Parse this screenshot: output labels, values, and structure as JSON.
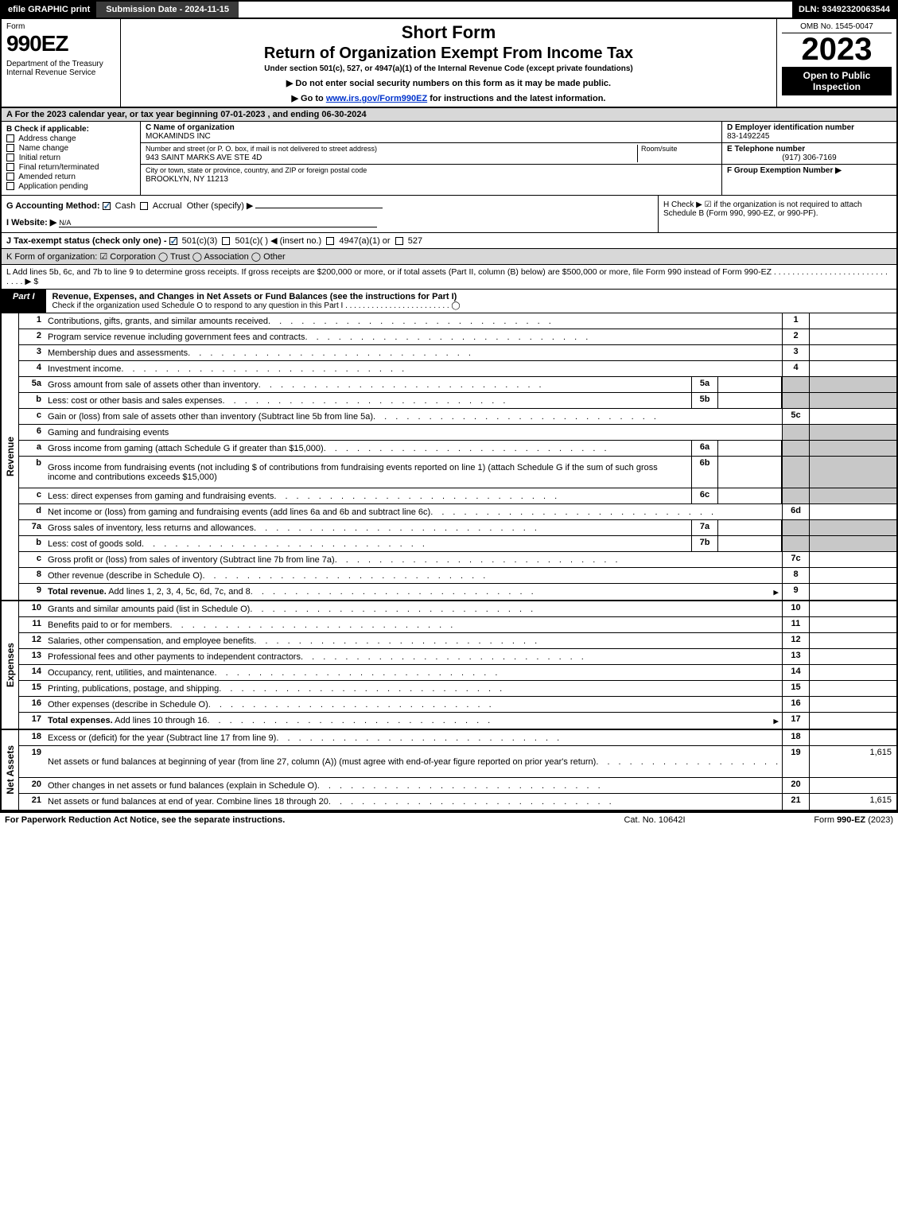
{
  "topbar": {
    "efile": "efile GRAPHIC print",
    "submission": "Submission Date - 2024-11-15",
    "dln": "DLN: 93492320063544"
  },
  "header": {
    "form_word": "Form",
    "form_number": "990EZ",
    "dept": "Department of the Treasury\nInternal Revenue Service",
    "short_form": "Short Form",
    "title": "Return of Organization Exempt From Income Tax",
    "under": "Under section 501(c), 527, or 4947(a)(1) of the Internal Revenue Code (except private foundations)",
    "no_ssn": "▶ Do not enter social security numbers on this form as it may be made public.",
    "goto_pre": "▶ Go to ",
    "goto_link": "www.irs.gov/Form990EZ",
    "goto_post": " for instructions and the latest information.",
    "omb": "OMB No. 1545-0047",
    "year": "2023",
    "open": "Open to Public Inspection"
  },
  "secA": "A  For the 2023 calendar year, or tax year beginning 07-01-2023 , and ending 06-30-2024",
  "secB": {
    "label": "B  Check if applicable:",
    "items": [
      "Address change",
      "Name change",
      "Initial return",
      "Final return/terminated",
      "Amended return",
      "Application pending"
    ]
  },
  "secC": {
    "c_label": "C Name of organization",
    "c_val": "MOKAMINDS INC",
    "addr_label": "Number and street (or P. O. box, if mail is not delivered to street address)",
    "addr_val": "943 SAINT MARKS AVE STE 4D",
    "room_label": "Room/suite",
    "city_label": "City or town, state or province, country, and ZIP or foreign postal code",
    "city_val": "BROOKLYN, NY  11213"
  },
  "secD": {
    "d_label": "D Employer identification number",
    "d_val": "83-1492245",
    "e_label": "E Telephone number",
    "e_val": "(917) 306-7169",
    "f_label": "F Group Exemption Number   ▶"
  },
  "secG": {
    "g": "G Accounting Method:",
    "cash": "Cash",
    "accrual": "Accrual",
    "other": "Other (specify) ▶",
    "i": "I Website: ▶",
    "i_val": "N/A",
    "j": "J Tax-exempt status (check only one) -",
    "j1": "501(c)(3)",
    "j2": "501(c)(  ) ◀ (insert no.)",
    "j3": "4947(a)(1) or",
    "j4": "527"
  },
  "secH": "H  Check ▶   ☑  if the organization is not required to attach Schedule B (Form 990, 990-EZ, or 990-PF).",
  "secK": "K Form of organization:   ☑ Corporation   ◯ Trust   ◯ Association   ◯ Other",
  "secL": "L Add lines 5b, 6c, and 7b to line 9 to determine gross receipts. If gross receipts are $200,000 or more, or if total assets (Part II, column (B) below) are $500,000 or more, file Form 990 instead of Form 990-EZ  . . . . . . . . . . . . . . . . . . . . . . . . . . . . .  ▶ $",
  "partI": {
    "tab": "Part I",
    "title": "Revenue, Expenses, and Changes in Net Assets or Fund Balances (see the instructions for Part I)",
    "sub": "Check if the organization used Schedule O to respond to any question in this Part I . . . . . . . . . . . . . . . . . . . . . . . .  ◯"
  },
  "vlabels": {
    "rev": "Revenue",
    "exp": "Expenses",
    "net": "Net Assets"
  },
  "revenue_lines": [
    {
      "n": "1",
      "d": "Contributions, gifts, grants, and similar amounts received",
      "rn": "1"
    },
    {
      "n": "2",
      "d": "Program service revenue including government fees and contracts",
      "rn": "2"
    },
    {
      "n": "3",
      "d": "Membership dues and assessments",
      "rn": "3"
    },
    {
      "n": "4",
      "d": "Investment income",
      "rn": "4"
    },
    {
      "n": "5a",
      "d": "Gross amount from sale of assets other than inventory",
      "sub": "5a",
      "shade": true
    },
    {
      "n": "b",
      "d": "Less: cost or other basis and sales expenses",
      "sub": "5b",
      "shade": true
    },
    {
      "n": "c",
      "d": "Gain or (loss) from sale of assets other than inventory (Subtract line 5b from line 5a)",
      "rn": "5c"
    },
    {
      "n": "6",
      "d": "Gaming and fundraising events",
      "shade": true,
      "noline": true
    },
    {
      "n": "a",
      "d": "Gross income from gaming (attach Schedule G if greater than $15,000)",
      "sub": "6a",
      "shade": true
    },
    {
      "n": "b",
      "d": "Gross income from fundraising events (not including $                      of contributions from fundraising events reported on line 1) (attach Schedule G if the sum of such gross income and contributions exceeds $15,000)",
      "sub": "6b",
      "shade": true,
      "tall": true
    },
    {
      "n": "c",
      "d": "Less: direct expenses from gaming and fundraising events",
      "sub": "6c",
      "shade": true
    },
    {
      "n": "d",
      "d": "Net income or (loss) from gaming and fundraising events (add lines 6a and 6b and subtract line 6c)",
      "rn": "6d"
    },
    {
      "n": "7a",
      "d": "Gross sales of inventory, less returns and allowances",
      "sub": "7a",
      "shade": true
    },
    {
      "n": "b",
      "d": "Less: cost of goods sold",
      "sub": "7b",
      "shade": true
    },
    {
      "n": "c",
      "d": "Gross profit or (loss) from sales of inventory (Subtract line 7b from line 7a)",
      "rn": "7c"
    },
    {
      "n": "8",
      "d": "Other revenue (describe in Schedule O)",
      "rn": "8"
    },
    {
      "n": "9",
      "d": "Total revenue. Add lines 1, 2, 3, 4, 5c, 6d, 7c, and 8",
      "rn": "9",
      "bold": true,
      "arrow": true
    }
  ],
  "expense_lines": [
    {
      "n": "10",
      "d": "Grants and similar amounts paid (list in Schedule O)",
      "rn": "10"
    },
    {
      "n": "11",
      "d": "Benefits paid to or for members",
      "rn": "11"
    },
    {
      "n": "12",
      "d": "Salaries, other compensation, and employee benefits",
      "rn": "12"
    },
    {
      "n": "13",
      "d": "Professional fees and other payments to independent contractors",
      "rn": "13"
    },
    {
      "n": "14",
      "d": "Occupancy, rent, utilities, and maintenance",
      "rn": "14"
    },
    {
      "n": "15",
      "d": "Printing, publications, postage, and shipping",
      "rn": "15"
    },
    {
      "n": "16",
      "d": "Other expenses (describe in Schedule O)",
      "rn": "16"
    },
    {
      "n": "17",
      "d": "Total expenses. Add lines 10 through 16",
      "rn": "17",
      "bold": true,
      "arrow": true
    }
  ],
  "net_lines": [
    {
      "n": "18",
      "d": "Excess or (deficit) for the year (Subtract line 17 from line 9)",
      "rn": "18"
    },
    {
      "n": "19",
      "d": "Net assets or fund balances at beginning of year (from line 27, column (A)) (must agree with end-of-year figure reported on prior year's return)",
      "rn": "19",
      "rv": "1,615",
      "tall": true,
      "shadetop": true
    },
    {
      "n": "20",
      "d": "Other changes in net assets or fund balances (explain in Schedule O)",
      "rn": "20"
    },
    {
      "n": "21",
      "d": "Net assets or fund balances at end of year. Combine lines 18 through 20",
      "rn": "21",
      "rv": "1,615"
    }
  ],
  "footer": {
    "l": "For Paperwork Reduction Act Notice, see the separate instructions.",
    "c": "Cat. No. 10642I",
    "r_pre": "Form ",
    "r_form": "990-EZ",
    "r_post": " (2023)"
  },
  "colors": {
    "shade": "#c8c8c8",
    "gray": "#d8d8d8",
    "link": "#0033cc"
  }
}
